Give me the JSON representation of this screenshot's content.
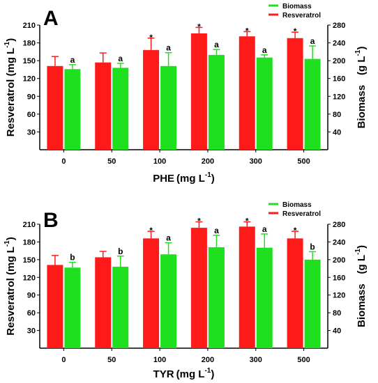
{
  "chart_data": [
    {
      "type": "bar",
      "panel_label": "A",
      "categories": [
        "0",
        "50",
        "100",
        "200",
        "300",
        "500"
      ],
      "xlabel_main": "PHE",
      "xlabel_unit": "(mg L",
      "xlabel_sup": "-1",
      "xlabel_close": ")",
      "ylabel_left_main": "Resveratrol (mg L",
      "ylabel_left_sup": "-1",
      "ylabel_left_close": ")",
      "ylabel_right_main": "Biomass",
      "ylabel_right_unit": "(g L",
      "ylabel_right_sup": "-1",
      "ylabel_right_close": ")",
      "ylim_left": [
        0,
        210
      ],
      "yticks_left": [
        "30",
        "60",
        "90",
        "120",
        "150",
        "180",
        "210"
      ],
      "ylim_right": [
        0,
        280
      ],
      "yticks_right": [
        "40",
        "80",
        "120",
        "160",
        "200",
        "240",
        "280"
      ],
      "legend_position": "top-right",
      "series": [
        {
          "name": "Resveratrol",
          "axis": "left",
          "color": "#ff1a1a",
          "values": [
            141,
            147,
            168,
            196,
            191,
            188
          ],
          "errors": [
            16,
            16,
            20,
            10,
            8,
            10
          ],
          "labels": [
            "",
            "",
            "*",
            "*",
            "*",
            "*"
          ]
        },
        {
          "name": "Biomass",
          "axis": "right",
          "color": "#1ee01e",
          "values": [
            181,
            184,
            188,
            213,
            207,
            204
          ],
          "errors": [
            10,
            10,
            30,
            12,
            6,
            29
          ],
          "labels": [
            "a",
            "a",
            "a",
            "a",
            "a",
            "a"
          ]
        }
      ]
    },
    {
      "type": "bar",
      "panel_label": "B",
      "categories": [
        "0",
        "50",
        "100",
        "200",
        "300",
        "500"
      ],
      "xlabel_main": "TYR",
      "xlabel_unit": "(mg L",
      "xlabel_sup": "-1",
      "xlabel_close": ")",
      "ylabel_left_main": "Resveratrol (mg L",
      "ylabel_left_sup": "-1",
      "ylabel_left_close": ")",
      "ylabel_right_main": "Biomass",
      "ylabel_right_unit": "(g L",
      "ylabel_right_sup": "-1",
      "ylabel_right_close": ")",
      "ylim_left": [
        0,
        210
      ],
      "yticks_left": [
        "30",
        "60",
        "90",
        "120",
        "150",
        "180",
        "210"
      ],
      "ylim_right": [
        0,
        280
      ],
      "yticks_right": [
        "40",
        "80",
        "120",
        "160",
        "200",
        "240",
        "280"
      ],
      "legend_position": "top-right",
      "series": [
        {
          "name": "Resveratrol",
          "axis": "left",
          "color": "#ff1a1a",
          "values": [
            141,
            154,
            186,
            204,
            206,
            186
          ],
          "errors": [
            16,
            10,
            12,
            10,
            8,
            12
          ],
          "labels": [
            "",
            "",
            "*",
            "*",
            "*",
            "*"
          ]
        },
        {
          "name": "Biomass",
          "axis": "right",
          "color": "#1ee01e",
          "values": [
            182,
            184,
            212,
            228,
            227,
            200
          ],
          "errors": [
            12,
            24,
            26,
            27,
            31,
            18
          ],
          "labels": [
            "b",
            "b",
            "a",
            "a",
            "a",
            "b"
          ]
        }
      ]
    }
  ]
}
